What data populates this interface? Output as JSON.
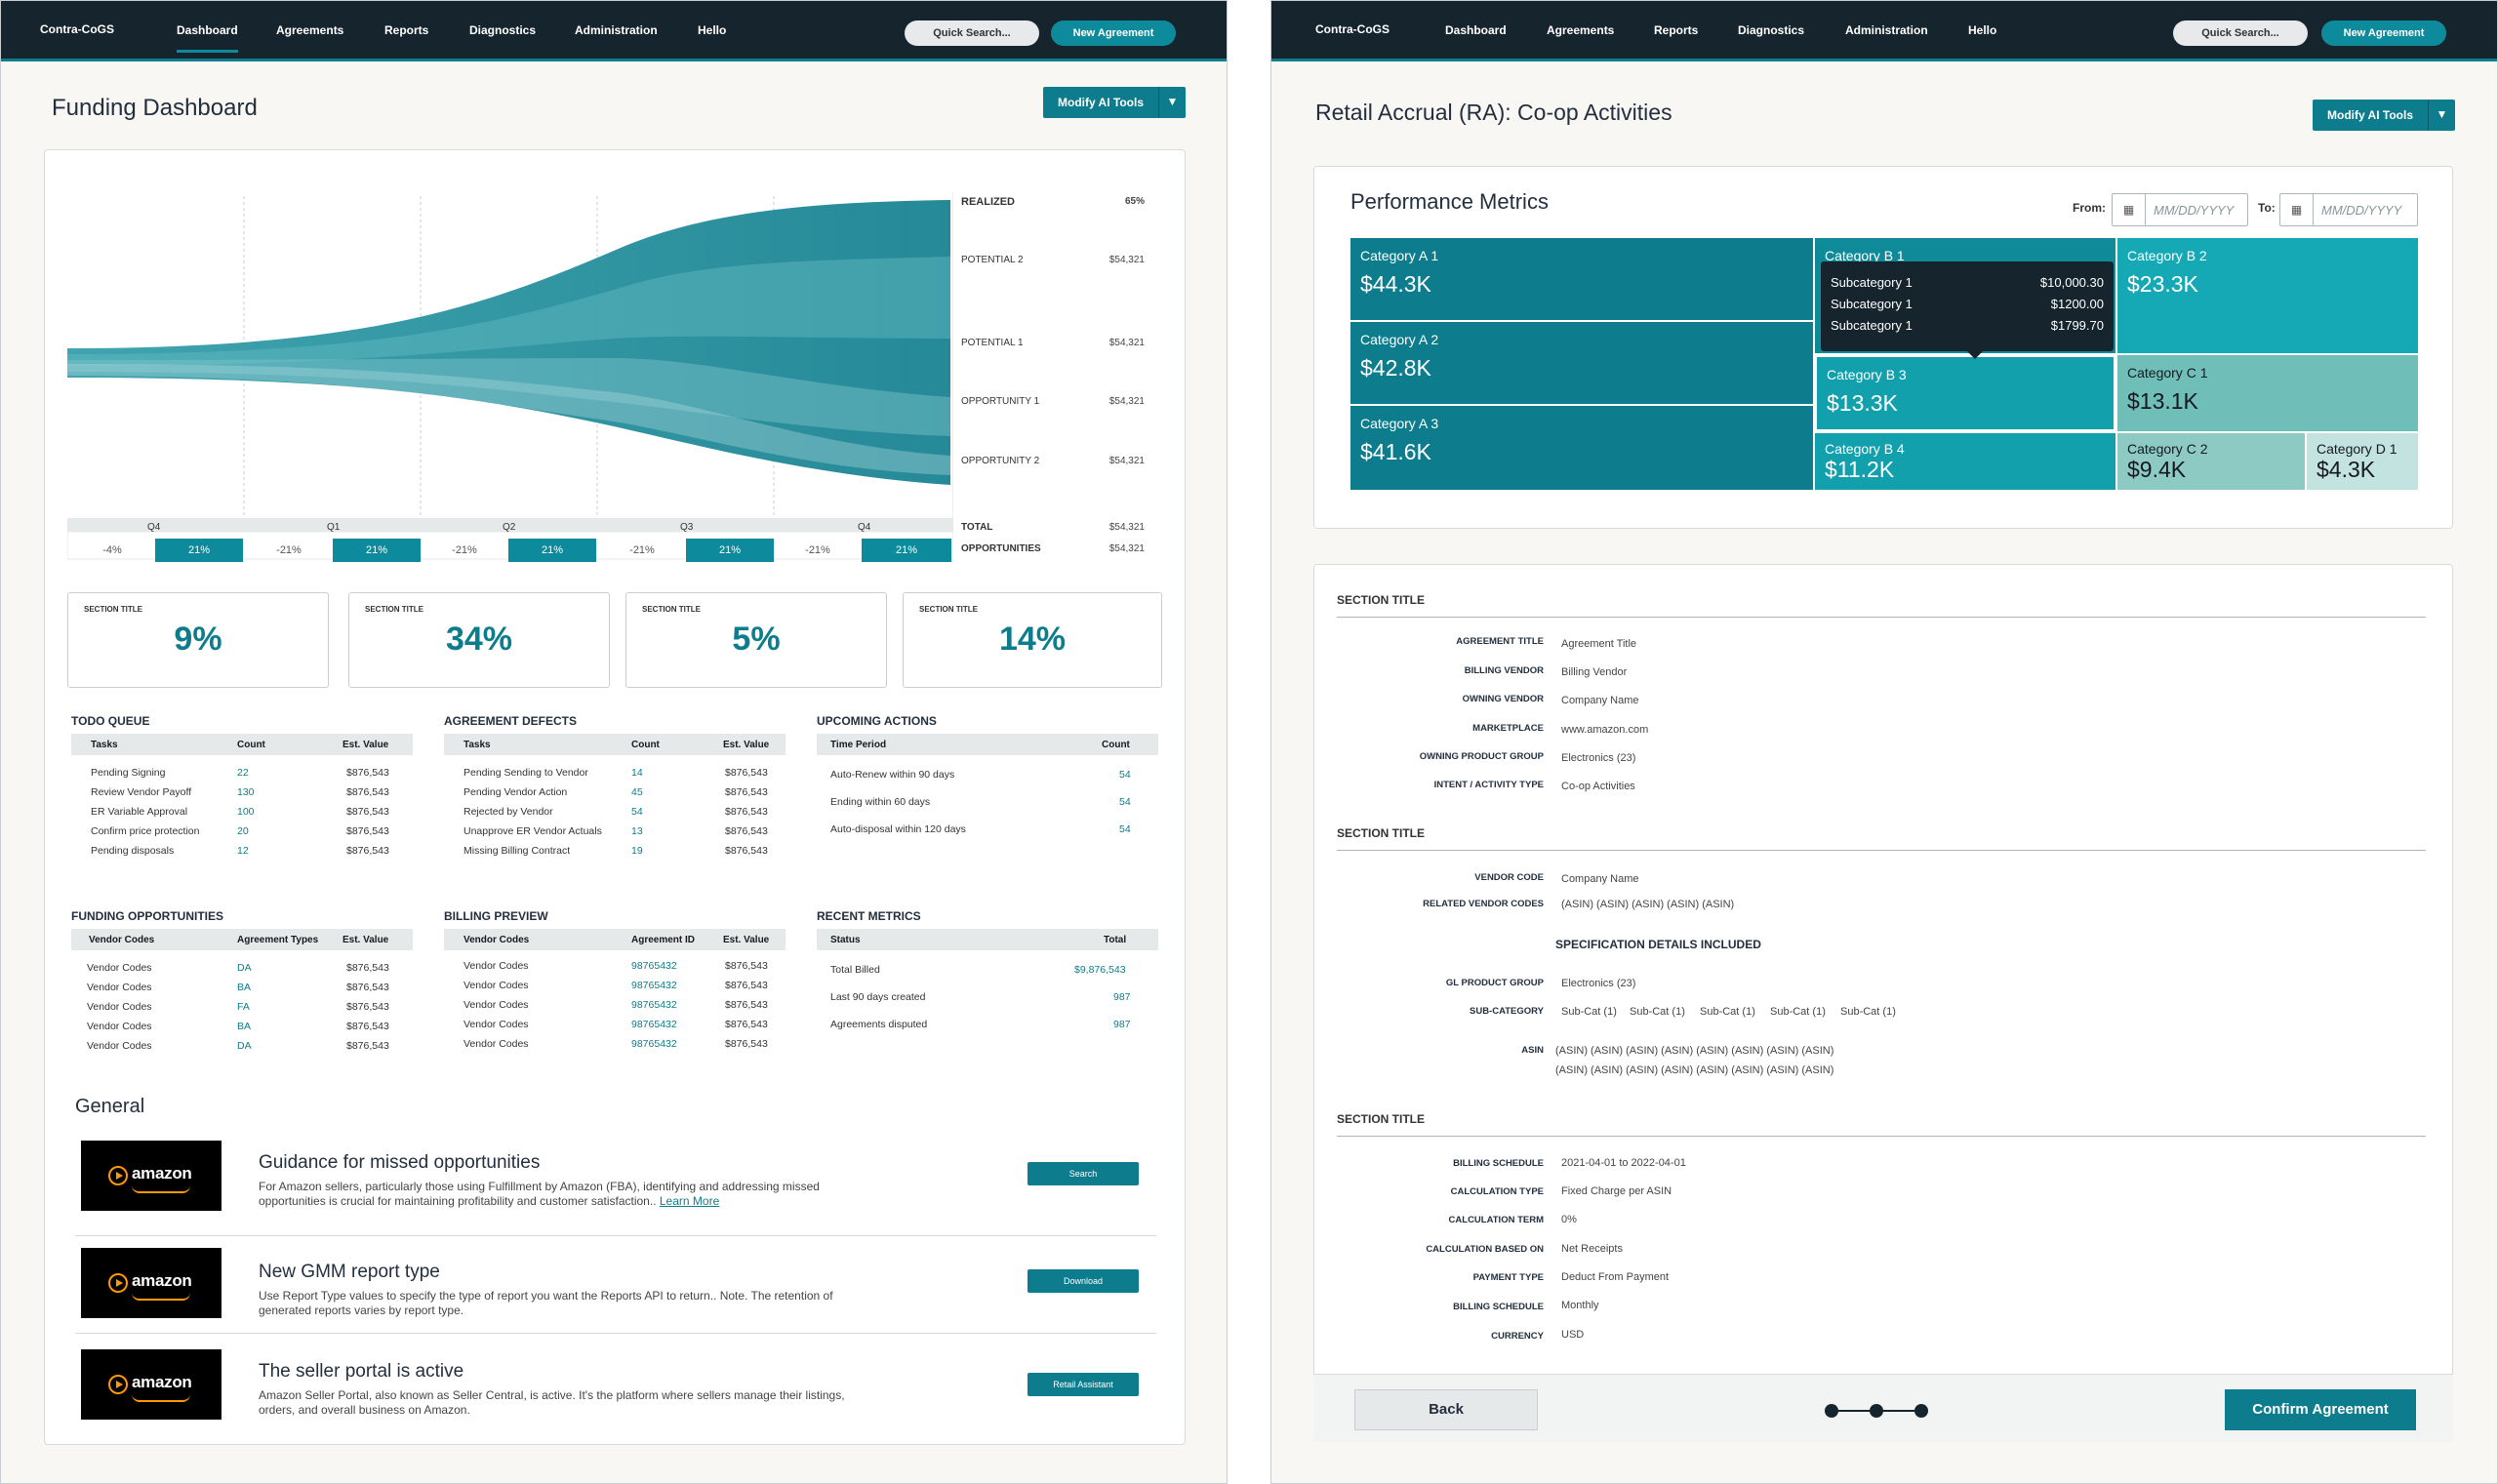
{
  "nav": {
    "brand": "Contra-CoGS",
    "items": [
      "Dashboard",
      "Agreements",
      "Reports",
      "Diagnostics",
      "Administration",
      "Hello"
    ],
    "quick_search": "Quick Search...",
    "new_agreement": "New Agreement"
  },
  "dashboard": {
    "title": "Funding Dashboard",
    "modify_btn": "Modify AI Tools",
    "sankey": {
      "labels": [
        {
          "name": "REALIZED",
          "value": "65%"
        },
        {
          "name": "POTENTIAL 2",
          "value": "$54,321"
        },
        {
          "name": "POTENTIAL 1",
          "value": "$54,321"
        },
        {
          "name": "OPPORTUNITY 1",
          "value": "$54,321"
        },
        {
          "name": "OPPORTUNITY 2",
          "value": "$54,321"
        }
      ],
      "total": {
        "name": "TOTAL",
        "value": "$54,321"
      },
      "opportunities": {
        "name": "OPPORTUNITIES",
        "value": "$54,321"
      },
      "quarters": [
        "Q4",
        "Q1",
        "Q2",
        "Q3",
        "Q4"
      ],
      "pcts": [
        {
          "neg": "-4%",
          "pos": "21%"
        },
        {
          "neg": "-21%",
          "pos": "21%"
        },
        {
          "neg": "-21%",
          "pos": "21%"
        },
        {
          "neg": "-21%",
          "pos": "21%"
        },
        {
          "neg": "-21%",
          "pos": "21%"
        }
      ]
    },
    "kpis": [
      {
        "title": "SECTION TITLE",
        "value": "9%"
      },
      {
        "title": "SECTION TITLE",
        "value": "34%"
      },
      {
        "title": "SECTION TITLE",
        "value": "5%"
      },
      {
        "title": "SECTION TITLE",
        "value": "14%"
      }
    ],
    "todo": {
      "title": "TODO QUEUE",
      "cols": [
        "Tasks",
        "Count",
        "Est. Value"
      ],
      "rows": [
        [
          "Pending Signing",
          "22",
          "$876,543"
        ],
        [
          "Review Vendor Payoff",
          "130",
          "$876,543"
        ],
        [
          "ER Variable Approval",
          "100",
          "$876,543"
        ],
        [
          "Confirm price protection",
          "20",
          "$876,543"
        ],
        [
          "Pending disposals",
          "12",
          "$876,543"
        ]
      ]
    },
    "defects": {
      "title": "AGREEMENT DEFECTS",
      "cols": [
        "Tasks",
        "Count",
        "Est. Value"
      ],
      "rows": [
        [
          "Pending Sending to Vendor",
          "14",
          "$876,543"
        ],
        [
          "Pending Vendor Action",
          "45",
          "$876,543"
        ],
        [
          "Rejected by Vendor",
          "54",
          "$876,543"
        ],
        [
          "Unapprove ER Vendor Actuals",
          "13",
          "$876,543"
        ],
        [
          "Missing Billing Contract",
          "19",
          "$876,543"
        ]
      ]
    },
    "upcoming": {
      "title": "UPCOMING ACTIONS",
      "cols": [
        "Time Period",
        "Count"
      ],
      "rows": [
        [
          "Auto-Renew within 90 days",
          "54"
        ],
        [
          "Ending within 60 days",
          "54"
        ],
        [
          "Auto-disposal within 120 days",
          "54"
        ]
      ]
    },
    "funding": {
      "title": "FUNDING OPPORTUNITIES",
      "cols": [
        "Vendor Codes",
        "Agreement Types",
        "Est. Value"
      ],
      "rows": [
        [
          "Vendor Codes",
          "DA",
          "$876,543"
        ],
        [
          "Vendor Codes",
          "BA",
          "$876,543"
        ],
        [
          "Vendor Codes",
          "FA",
          "$876,543"
        ],
        [
          "Vendor Codes",
          "BA",
          "$876,543"
        ],
        [
          "Vendor Codes",
          "DA",
          "$876,543"
        ]
      ]
    },
    "billing": {
      "title": "BILLING PREVIEW",
      "cols": [
        "Vendor Codes",
        "Agreement ID",
        "Est. Value"
      ],
      "rows": [
        [
          "Vendor Codes",
          "98765432",
          "$876,543"
        ],
        [
          "Vendor Codes",
          "98765432",
          "$876,543"
        ],
        [
          "Vendor Codes",
          "98765432",
          "$876,543"
        ],
        [
          "Vendor Codes",
          "98765432",
          "$876,543"
        ],
        [
          "Vendor Codes",
          "98765432",
          "$876,543"
        ]
      ]
    },
    "recent": {
      "title": "RECENT METRICS",
      "cols": [
        "Status",
        "Total"
      ],
      "rows": [
        [
          "Total Billed",
          "$9,876,543"
        ],
        [
          "Last 90 days created",
          "987"
        ],
        [
          "Agreements disputed",
          "987"
        ]
      ]
    },
    "general": {
      "title": "General",
      "items": [
        {
          "logo": "amazon",
          "title": "Guidance for missed opportunities",
          "desc": "For Amazon sellers, particularly those using Fulfillment by Amazon (FBA), identifying and addressing missed opportunities is crucial for maintaining profitability and customer satisfaction..",
          "link": "Learn More",
          "button": "Search"
        },
        {
          "logo": "amazon",
          "title": "New GMM report type",
          "desc": "Use Report Type values to specify the type of report you want the Reports API to return.. Note. The retention of generated reports varies by report type.",
          "link": "",
          "button": "Download"
        },
        {
          "logo": "amazon",
          "title": "The seller portal is active",
          "desc": "Amazon Seller Portal, also known as Seller Central, is active. It's the platform where sellers manage their listings, orders, and overall business on Amazon.",
          "link": "",
          "button": "Retail Assistant"
        }
      ]
    }
  },
  "accrual": {
    "title": "Retail Accrual (RA): Co-op Activities",
    "modify_btn": "Modify AI Tools",
    "metrics": {
      "title": "Performance Metrics",
      "from_label": "From:",
      "to_label": "To:",
      "date_placeholder": "MM/DD/YYYY",
      "tiles": [
        {
          "name": "Category A 1",
          "value": "$44.3K"
        },
        {
          "name": "Category A 2",
          "value": "$42.8K"
        },
        {
          "name": "Category A 3",
          "value": "$41.6K"
        },
        {
          "name": "Category B 1",
          "value": ""
        },
        {
          "name": "Category B 3",
          "value": "$13.3K"
        },
        {
          "name": "Category B 4",
          "value": "$11.2K"
        },
        {
          "name": "Category B 2",
          "value": "$23.3K"
        },
        {
          "name": "Category C 1",
          "value": "$13.1K"
        },
        {
          "name": "Category C 2",
          "value": "$9.4K"
        },
        {
          "name": "Category D 1",
          "value": "$4.3K"
        }
      ],
      "tooltip": [
        {
          "name": "Subcategory 1",
          "value": "$10,000.30"
        },
        {
          "name": "Subcategory 1",
          "value": "$1200.00"
        },
        {
          "name": "Subcategory 1",
          "value": "$1799.70"
        }
      ]
    },
    "section1": {
      "title": "SECTION TITLE",
      "fields": [
        {
          "label": "AGREEMENT TITLE",
          "value": "Agreement Title"
        },
        {
          "label": "BILLING VENDOR",
          "value": "Billing Vendor"
        },
        {
          "label": "OWNING VENDOR",
          "value": "Company Name"
        },
        {
          "label": "MARKETPLACE",
          "value": "www.amazon.com"
        },
        {
          "label": "OWNING PRODUCT GROUP",
          "value": "Electronics (23)"
        },
        {
          "label": "INTENT / ACTIVITY TYPE",
          "value": "Co-op Activities"
        }
      ]
    },
    "section2": {
      "title": "SECTION TITLE",
      "fields": [
        {
          "label": "VENDOR CODE",
          "value": "Company Name"
        },
        {
          "label": "RELATED VENDOR CODES",
          "value": "(ASIN) (ASIN) (ASIN) (ASIN) (ASIN)"
        }
      ],
      "spec_title": "SPECIFICATION DETAILS INCLUDED",
      "gl_label": "GL PRODUCT GROUP",
      "gl_value": "Electronics (23)",
      "subcat_label": "SUB-CATEGORY",
      "subcats": [
        "Sub-Cat (1)",
        "Sub-Cat (1)",
        "Sub-Cat (1)",
        "Sub-Cat (1)",
        "Sub-Cat (1)"
      ],
      "asin_label": "ASIN",
      "asin_line1": "(ASIN) (ASIN) (ASIN) (ASIN) (ASIN) (ASIN) (ASIN) (ASIN)",
      "asin_line2": "(ASIN) (ASIN) (ASIN) (ASIN) (ASIN) (ASIN) (ASIN) (ASIN)"
    },
    "section3": {
      "title": "SECTION TITLE",
      "fields": [
        {
          "label": "BILLING SCHEDULE",
          "value": "2021-04-01 to 2022-04-01"
        },
        {
          "label": "CALCULATION TYPE",
          "value": "Fixed Charge per ASIN"
        },
        {
          "label": "CALCULATION TERM",
          "value": "0%"
        },
        {
          "label": "CALCULATION BASED ON",
          "value": "Net Receipts"
        },
        {
          "label": "PAYMENT TYPE",
          "value": "Deduct From Payment"
        },
        {
          "label": "BILLING SCHEDULE",
          "value": "Monthly"
        },
        {
          "label": "CURRENCY",
          "value": "USD"
        }
      ]
    },
    "back": "Back",
    "confirm": "Confirm Agreement"
  }
}
